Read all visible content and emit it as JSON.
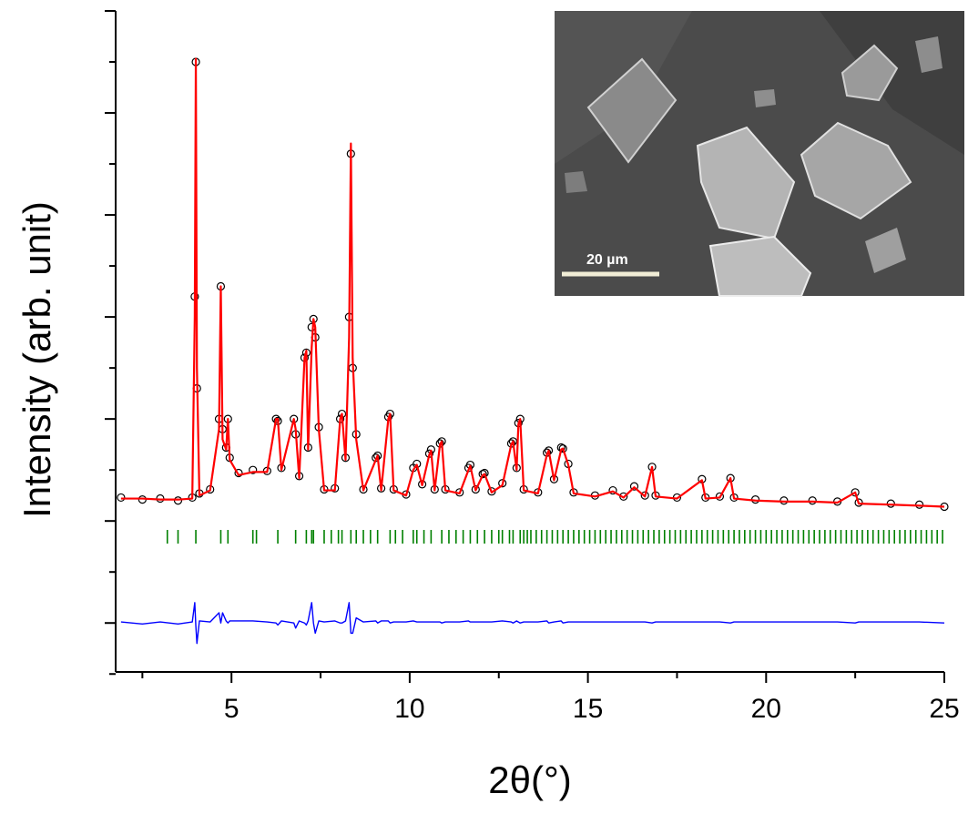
{
  "chart_data": {
    "type": "line",
    "x_label": "2θ(°)",
    "y_label": "Intensity (arb. unit)",
    "xlim": [
      1.75,
      25
    ],
    "xticks": [
      5,
      10,
      15,
      20,
      25
    ],
    "x_minor_ticks": [
      2.5,
      7.5,
      12.5,
      17.5,
      22.5
    ],
    "ylim": [
      -0.48,
      6
    ],
    "yticks": [
      0,
      1,
      2,
      3,
      4,
      5,
      6
    ],
    "y_minor_ticks": [
      -0.5,
      0.5,
      1.5,
      2.5,
      3.5,
      4.5,
      5.5
    ],
    "show_ytick_labels": false,
    "x": [
      1.9,
      2.5,
      3.0,
      3.5,
      3.9,
      3.97,
      4.0,
      4.03,
      4.1,
      4.4,
      4.65,
      4.7,
      4.75,
      4.85,
      4.9,
      4.95,
      5.2,
      5.6,
      6.0,
      6.25,
      6.3,
      6.4,
      6.75,
      6.8,
      6.9,
      7.05,
      7.1,
      7.15,
      7.25,
      7.3,
      7.35,
      7.45,
      7.6,
      7.9,
      8.05,
      8.1,
      8.2,
      8.3,
      8.35,
      8.4,
      8.5,
      8.7,
      9.05,
      9.1,
      9.2,
      9.4,
      9.45,
      9.55,
      9.9,
      10.1,
      10.2,
      10.35,
      10.55,
      10.6,
      10.7,
      10.85,
      10.9,
      11.0,
      11.4,
      11.65,
      11.7,
      11.85,
      12.05,
      12.1,
      12.3,
      12.6,
      12.85,
      12.9,
      13.0,
      13.05,
      13.1,
      13.2,
      13.6,
      13.85,
      13.9,
      14.05,
      14.25,
      14.3,
      14.45,
      14.6,
      15.2,
      15.7,
      16.0,
      16.3,
      16.6,
      16.8,
      16.9,
      17.5,
      18.2,
      18.3,
      18.7,
      19.0,
      19.1,
      19.7,
      20.5,
      21.3,
      22.0,
      22.5,
      22.6,
      23.5,
      24.3,
      25.0
    ],
    "series": [
      {
        "style": "markers",
        "color": "#000000",
        "values": [
          1.23,
          1.21,
          1.22,
          1.2,
          1.23,
          3.2,
          5.5,
          2.3,
          1.27,
          1.31,
          2.0,
          3.3,
          1.9,
          1.72,
          2.0,
          1.62,
          1.47,
          1.5,
          1.49,
          2.0,
          1.98,
          1.52,
          2.0,
          1.85,
          1.44,
          2.6,
          2.65,
          1.72,
          2.9,
          2.98,
          2.8,
          1.92,
          1.31,
          1.32,
          2.0,
          2.05,
          1.62,
          3.0,
          4.6,
          2.5,
          1.85,
          1.31,
          1.62,
          1.64,
          1.32,
          2.02,
          2.05,
          1.31,
          1.26,
          1.52,
          1.56,
          1.36,
          1.66,
          1.7,
          1.31,
          1.76,
          1.78,
          1.31,
          1.28,
          1.52,
          1.55,
          1.31,
          1.46,
          1.47,
          1.29,
          1.37,
          1.76,
          1.78,
          1.52,
          1.96,
          2.0,
          1.31,
          1.28,
          1.67,
          1.69,
          1.41,
          1.72,
          1.71,
          1.56,
          1.28,
          1.25,
          1.3,
          1.24,
          1.34,
          1.25,
          1.53,
          1.25,
          1.23,
          1.41,
          1.23,
          1.24,
          1.42,
          1.23,
          1.21,
          1.2,
          1.2,
          1.19,
          1.28,
          1.18,
          1.17,
          1.16,
          1.14
        ]
      },
      {
        "style": "line",
        "color": "#ff0000",
        "values": [
          1.22,
          1.22,
          1.21,
          1.21,
          1.22,
          3.0,
          5.53,
          2.5,
          1.25,
          1.3,
          1.9,
          3.3,
          1.8,
          1.7,
          2.0,
          1.6,
          1.45,
          1.48,
          1.48,
          2.0,
          2.0,
          1.5,
          2.0,
          1.9,
          1.42,
          2.6,
          2.67,
          1.7,
          2.7,
          2.98,
          2.9,
          1.9,
          1.3,
          1.3,
          2.0,
          2.05,
          1.6,
          2.8,
          4.7,
          2.6,
          1.8,
          1.3,
          1.6,
          1.64,
          1.3,
          2.0,
          2.05,
          1.3,
          1.25,
          1.5,
          1.55,
          1.35,
          1.65,
          1.69,
          1.3,
          1.75,
          1.78,
          1.3,
          1.27,
          1.5,
          1.54,
          1.3,
          1.45,
          1.46,
          1.28,
          1.35,
          1.75,
          1.78,
          1.5,
          1.95,
          2.0,
          1.3,
          1.27,
          1.65,
          1.69,
          1.4,
          1.7,
          1.71,
          1.55,
          1.27,
          1.24,
          1.29,
          1.23,
          1.33,
          1.24,
          1.53,
          1.24,
          1.22,
          1.4,
          1.22,
          1.23,
          1.42,
          1.22,
          1.2,
          1.19,
          1.19,
          1.18,
          1.28,
          1.17,
          1.16,
          1.15,
          1.14
        ]
      },
      {
        "style": "line",
        "color": "#0000ff",
        "values": [
          0.01,
          -0.01,
          0.01,
          -0.01,
          0.01,
          0.2,
          -0.03,
          -0.2,
          0.02,
          0.01,
          0.1,
          0,
          0.1,
          0.02,
          0,
          0.02,
          0.02,
          0.02,
          0.01,
          0,
          -0.02,
          0.02,
          0,
          -0.05,
          0.02,
          0,
          -0.02,
          0.02,
          0.2,
          0,
          -0.1,
          0.02,
          0.01,
          0.02,
          0,
          0,
          0.02,
          0.2,
          -0.1,
          -0.1,
          0.05,
          0.01,
          0.02,
          0,
          0.02,
          0.02,
          0,
          0.01,
          0.01,
          0.02,
          0.01,
          0.01,
          0.01,
          0.01,
          0.01,
          0.01,
          0,
          0.01,
          0.01,
          0.02,
          0.01,
          0.01,
          0.01,
          0.01,
          0.01,
          0.02,
          0.01,
          0,
          0.02,
          0.01,
          0,
          0.01,
          0.01,
          0.02,
          0,
          0.01,
          0.02,
          0,
          0.01,
          0.01,
          0.01,
          0.01,
          0.01,
          0.01,
          0.01,
          0,
          0.01,
          0.01,
          0.01,
          0.01,
          0.01,
          0,
          0.01,
          0.01,
          0.01,
          0.01,
          0.01,
          0,
          0.01,
          0.01,
          0.01,
          0
        ]
      }
    ],
    "bragg_positions": {
      "color": "#008000",
      "x": [
        3.2,
        3.5,
        4.0,
        4.7,
        4.9,
        5.6,
        5.7,
        6.3,
        6.8,
        7.1,
        7.25,
        7.3,
        7.6,
        7.8,
        8.0,
        8.1,
        8.35,
        8.5,
        8.7,
        8.9,
        9.1,
        9.45,
        9.6,
        9.8,
        10.1,
        10.2,
        10.4,
        10.6,
        10.9,
        11.1,
        11.3,
        11.5,
        11.7,
        11.9,
        12.1,
        12.3,
        12.5,
        12.6,
        12.8,
        12.9,
        13.1,
        13.2,
        13.3,
        13.4,
        13.55,
        13.7,
        13.85,
        14.0,
        14.15,
        14.3,
        14.45,
        14.6,
        14.75,
        14.9,
        15.05,
        15.2,
        15.35,
        15.5,
        15.65,
        15.8,
        15.95,
        16.1,
        16.25,
        16.4,
        16.55,
        16.7,
        16.85,
        17.0,
        17.15,
        17.3,
        17.45,
        17.6,
        17.75,
        17.9,
        18.05,
        18.2,
        18.35,
        18.5,
        18.65,
        18.8,
        18.95,
        19.1,
        19.25,
        19.4,
        19.55,
        19.7,
        19.85,
        20.0,
        20.15,
        20.3,
        20.45,
        20.6,
        20.75,
        20.9,
        21.05,
        21.2,
        21.35,
        21.5,
        21.65,
        21.8,
        21.95,
        22.1,
        22.25,
        22.4,
        22.55,
        22.7,
        22.85,
        23.0,
        23.15,
        23.3,
        23.45,
        23.6,
        23.75,
        23.9,
        24.05,
        24.2,
        24.35,
        24.5,
        24.65,
        24.8,
        24.95
      ]
    },
    "inset": {
      "scale_bar_label": "20 µm"
    }
  }
}
